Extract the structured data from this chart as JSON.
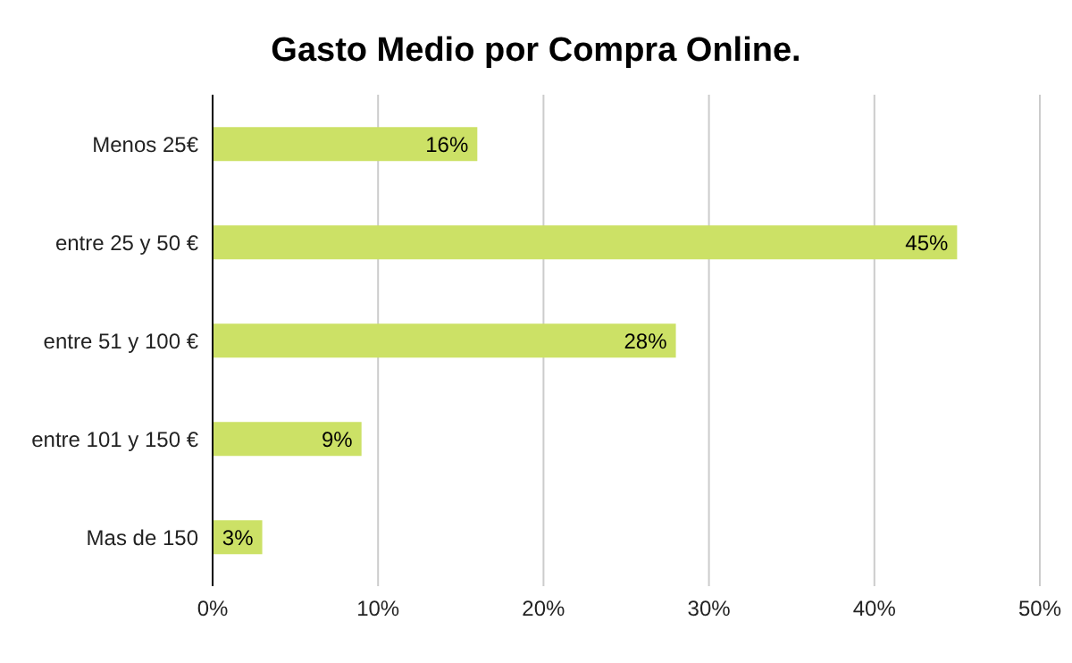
{
  "chart_data": {
    "type": "bar",
    "orientation": "horizontal",
    "title": "Gasto Medio por Compra Online.",
    "categories": [
      "Menos 25€",
      "entre 25 y 50 €",
      "entre 51 y 100 €",
      "entre 101 y 150 €",
      "Mas de 150"
    ],
    "values": [
      16,
      45,
      28,
      9,
      3
    ],
    "value_labels": [
      "16%",
      "45%",
      "28%",
      "9%",
      "3%"
    ],
    "color": "#cce166",
    "xlim": [
      0,
      50
    ],
    "xticks": [
      {
        "value": 0,
        "label": "0%"
      },
      {
        "value": 10,
        "label": "10%"
      },
      {
        "value": 20,
        "label": "20%"
      },
      {
        "value": 30,
        "label": "30%"
      },
      {
        "value": 40,
        "label": "40%"
      },
      {
        "value": 50,
        "label": "50%"
      }
    ],
    "grid": "x",
    "legend": false
  }
}
